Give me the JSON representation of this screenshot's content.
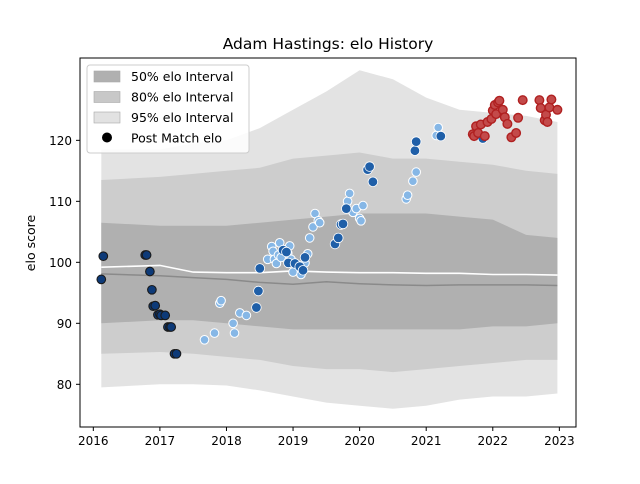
{
  "chart_data": {
    "type": "scatter",
    "title": "Adam Hastings: elo History",
    "xlabel": "",
    "ylabel": "elo score",
    "xlim": [
      2015.8,
      2023.25
    ],
    "ylim": [
      73.0,
      133.5
    ],
    "xticks": [
      2016,
      2017,
      2018,
      2019,
      2020,
      2021,
      2022,
      2023
    ],
    "yticks": [
      80,
      90,
      100,
      110,
      120
    ],
    "grid": false,
    "legend_position": "top-left",
    "legend": [
      {
        "label": "50% elo Interval",
        "swatch": "box",
        "color": "#b0b0b0"
      },
      {
        "label": "80% elo Interval",
        "swatch": "box",
        "color": "#c8c8c8"
      },
      {
        "label": "95% elo Interval",
        "swatch": "box",
        "color": "#e2e2e2"
      },
      {
        "label": "Post Match elo",
        "swatch": "dot",
        "color": "#000000"
      }
    ],
    "colors": {
      "band50": "#b0b0b0",
      "band80": "#cdcdcd",
      "band95": "#e3e3e3",
      "median_line": "#8a8a8a",
      "mean_line": "#ffffff",
      "dark_point": "#0d3a78",
      "dark_point_edge": "#1a1a1a",
      "blue_point": "#1f5fa8",
      "light_point": "#86b7e6",
      "red_point": "#c34a4a",
      "red_point_edge": "#b02020"
    },
    "bands": {
      "x": [
        2016.12,
        2017.0,
        2017.5,
        2018.0,
        2018.5,
        2019.0,
        2019.5,
        2020.0,
        2020.5,
        2021.0,
        2021.5,
        2022.0,
        2022.5,
        2022.97
      ],
      "p95_low": [
        79.5,
        80.0,
        80.0,
        79.8,
        79.0,
        78.0,
        77.0,
        76.5,
        76.0,
        76.5,
        77.5,
        78.0,
        78.0,
        78.5
      ],
      "p80_low": [
        85.0,
        85.3,
        85.0,
        84.5,
        84.0,
        83.0,
        82.5,
        82.5,
        82.0,
        82.5,
        83.0,
        83.5,
        84.0,
        84.0
      ],
      "p50_low": [
        90.0,
        90.5,
        90.5,
        90.0,
        89.5,
        89.0,
        89.0,
        89.0,
        89.0,
        89.0,
        89.0,
        89.5,
        89.5,
        90.0
      ],
      "p50_high": [
        106.5,
        106.0,
        106.0,
        106.0,
        106.5,
        107.0,
        107.5,
        108.0,
        108.0,
        108.0,
        107.5,
        107.0,
        104.5,
        104.0
      ],
      "p80_high": [
        113.5,
        114.0,
        114.5,
        115.0,
        115.5,
        117.0,
        117.5,
        118.0,
        117.0,
        117.0,
        116.5,
        116.0,
        115.0,
        114.5
      ],
      "p95_high": [
        118.5,
        118.5,
        119.5,
        120.0,
        122.0,
        125.0,
        128.0,
        131.5,
        130.0,
        127.0,
        125.0,
        124.5,
        124.0,
        123.0
      ],
      "median": [
        98.1,
        97.8,
        97.5,
        97.2,
        96.7,
        96.4,
        96.8,
        96.5,
        96.3,
        96.2,
        96.3,
        96.3,
        96.3,
        96.2
      ],
      "mean": [
        99.2,
        99.5,
        98.4,
        98.3,
        98.3,
        98.6,
        98.4,
        98.3,
        98.3,
        98.2,
        98.2,
        98.0,
        98.0,
        97.9
      ]
    },
    "series": [
      {
        "style": "dark",
        "x": [
          2016.12,
          2016.15,
          2016.78,
          2016.8,
          2016.85,
          2016.88,
          2016.9,
          2016.93,
          2016.97,
          2017.0,
          2017.02,
          2017.08,
          2017.12,
          2017.15,
          2017.17,
          2017.22,
          2017.25
        ],
        "y": [
          97.2,
          101.0,
          101.2,
          101.2,
          98.5,
          95.5,
          92.8,
          92.9,
          91.4,
          91.5,
          91.3,
          91.3,
          89.4,
          89.4,
          89.4,
          85.0,
          85.0
        ]
      },
      {
        "style": "light",
        "x": [
          2017.67,
          2017.82,
          2017.9,
          2017.92,
          2018.1,
          2018.12,
          2018.2,
          2018.3,
          2018.62,
          2018.68,
          2018.7,
          2018.72,
          2018.75,
          2018.78,
          2018.8,
          2018.82,
          2018.88,
          2018.92,
          2018.95,
          2018.97,
          2019.0,
          2019.05,
          2019.1,
          2019.12,
          2019.18,
          2019.22,
          2019.25,
          2019.3,
          2019.33,
          2019.38,
          2019.4,
          2019.82,
          2019.85,
          2019.9,
          2019.95,
          2020.0,
          2020.02,
          2020.05,
          2020.7,
          2020.72,
          2020.8,
          2020.85,
          2021.15,
          2021.18
        ],
        "y": [
          87.3,
          88.4,
          93.3,
          93.7,
          90.0,
          88.4,
          91.7,
          91.3,
          100.5,
          102.6,
          101.8,
          100.5,
          99.8,
          101.2,
          103.2,
          100.8,
          102.0,
          101.5,
          102.7,
          100.5,
          98.4,
          99.7,
          99.3,
          98.0,
          99.9,
          101.4,
          104.0,
          105.8,
          108.0,
          106.8,
          106.5,
          110.0,
          111.3,
          108.2,
          108.8,
          107.2,
          106.8,
          109.3,
          110.4,
          111.0,
          113.3,
          114.8,
          120.8,
          122.1
        ]
      },
      {
        "style": "blue",
        "x": [
          2018.45,
          2018.48,
          2018.5,
          2018.85,
          2018.9,
          2018.93,
          2019.03,
          2019.1,
          2019.15,
          2019.18,
          2019.63,
          2019.68,
          2019.72,
          2019.75,
          2019.8,
          2020.12,
          2020.15,
          2020.2,
          2020.83,
          2020.85,
          2021.22,
          2021.85
        ],
        "y": [
          92.6,
          95.3,
          99.0,
          102.0,
          101.7,
          99.9,
          99.8,
          99.3,
          98.7,
          100.8,
          103.0,
          104.0,
          106.2,
          106.3,
          108.8,
          115.2,
          115.7,
          113.2,
          118.3,
          119.8,
          120.7,
          120.3
        ]
      },
      {
        "style": "red",
        "x": [
          2021.7,
          2021.72,
          2021.75,
          2021.78,
          2021.82,
          2021.88,
          2021.92,
          2021.98,
          2022.0,
          2022.03,
          2022.05,
          2022.08,
          2022.1,
          2022.15,
          2022.18,
          2022.22,
          2022.28,
          2022.35,
          2022.38,
          2022.45,
          2022.7,
          2022.72,
          2022.78,
          2022.8,
          2022.82,
          2022.85,
          2022.88,
          2022.97
        ],
        "y": [
          121.0,
          120.7,
          122.3,
          121.2,
          122.6,
          120.7,
          123.0,
          123.5,
          124.9,
          125.8,
          124.3,
          126.2,
          126.5,
          125.0,
          123.8,
          122.7,
          120.5,
          121.2,
          123.7,
          126.6,
          126.6,
          125.3,
          123.3,
          124.2,
          123.0,
          125.4,
          126.7,
          125.0
        ]
      }
    ]
  }
}
